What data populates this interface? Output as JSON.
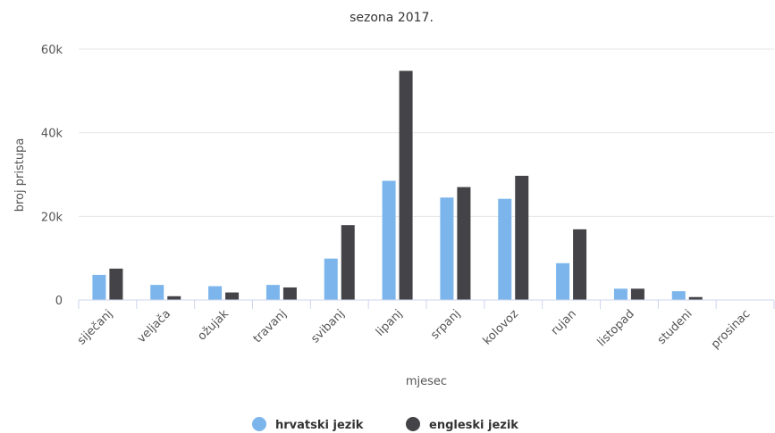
{
  "chart_data": {
    "type": "bar",
    "title": "sezona 2017.",
    "xlabel": "mjesec",
    "ylabel": "broj pristupa",
    "categories": [
      "siječanj",
      "veljača",
      "ožujak",
      "travanj",
      "svibanj",
      "lipanj",
      "srpanj",
      "kolovoz",
      "rujan",
      "listopad",
      "studeni",
      "prosinac"
    ],
    "yticks": [
      "0",
      "20k",
      "40k",
      "60k"
    ],
    "ylim": [
      0,
      60000
    ],
    "grid": true,
    "legend_position": "bottom-center",
    "series": [
      {
        "name": "hrvatski jezik",
        "color": "#7cb5ec",
        "values": [
          6000,
          3600,
          3300,
          3600,
          9900,
          28500,
          24500,
          24200,
          8800,
          2700,
          2100,
          0
        ]
      },
      {
        "name": "engleski jezik",
        "color": "#434348",
        "values": [
          7500,
          900,
          1800,
          3000,
          17900,
          54800,
          27000,
          29700,
          16900,
          2700,
          700,
          0
        ]
      }
    ]
  }
}
